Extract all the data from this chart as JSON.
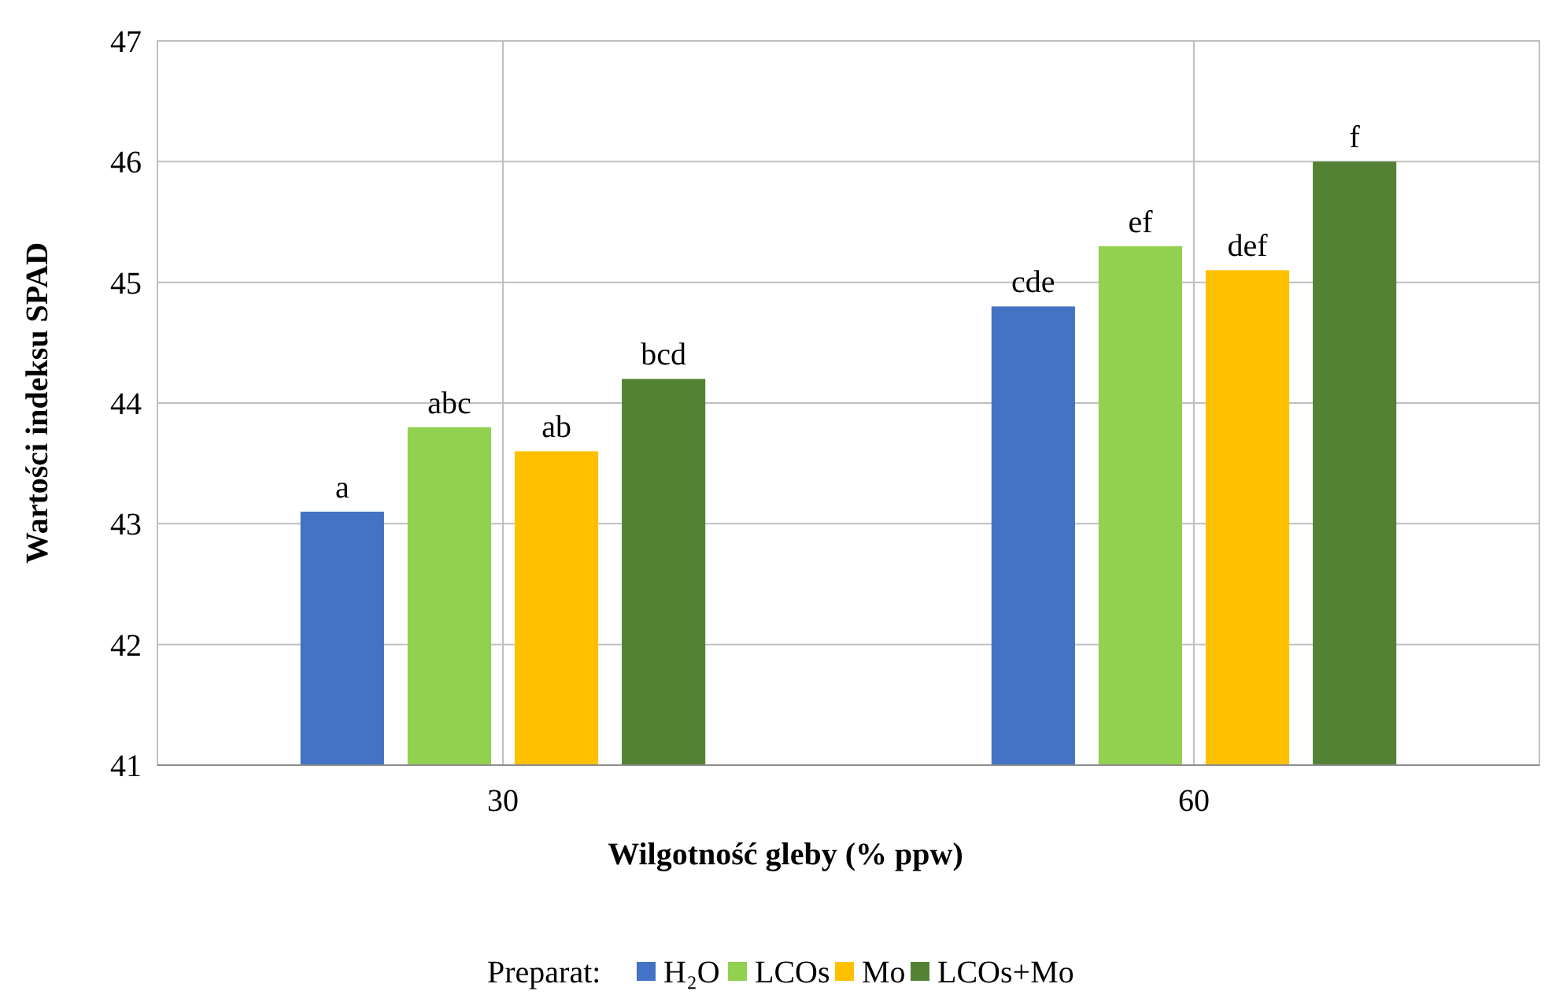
{
  "chart_data": {
    "type": "bar",
    "xlabel": "Wilgotność gleby (% ppw)",
    "ylabel": "Wartości indeksu SPAD",
    "legend_title": "Preparat:",
    "categories": [
      "30",
      "60"
    ],
    "series": [
      {
        "name": "H₂O",
        "color": "#4472c4",
        "values": [
          43.1,
          44.8
        ],
        "value_labels": [
          "a",
          "cde"
        ]
      },
      {
        "name": "LCOs",
        "color": "#92d050",
        "values": [
          43.8,
          45.3
        ],
        "value_labels": [
          "abc",
          "ef"
        ]
      },
      {
        "name": "Mo",
        "color": "#ffc000",
        "values": [
          43.6,
          45.1
        ],
        "value_labels": [
          "ab",
          "def"
        ]
      },
      {
        "name": "LCOs+Mo",
        "color": "#548235",
        "values": [
          44.2,
          46.0
        ],
        "value_labels": [
          "bcd",
          "f"
        ]
      }
    ],
    "ylim": [
      41,
      47
    ],
    "yticks": [
      41,
      42,
      43,
      44,
      45,
      46,
      47
    ],
    "grid": true,
    "legend": "bottom"
  }
}
